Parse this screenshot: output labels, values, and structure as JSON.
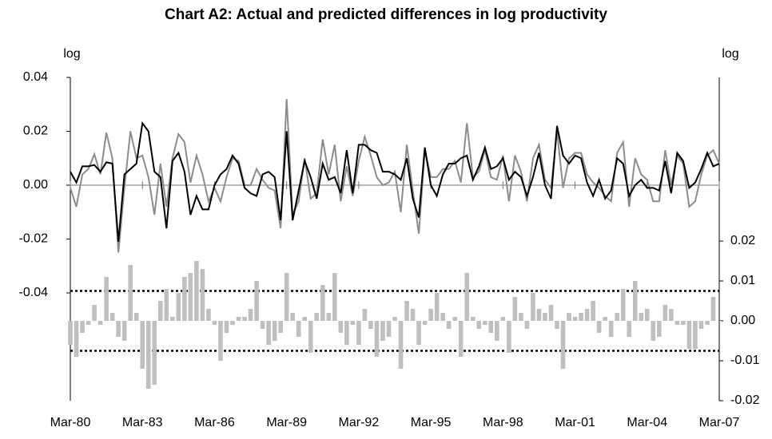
{
  "chart_data": {
    "type": "line",
    "title": "Chart A2: Actual and predicted differences in log productivity",
    "y_label": "log",
    "y2_label": "log",
    "categories": [
      "Mar-80",
      null,
      null,
      null,
      null,
      null,
      null,
      null,
      null,
      null,
      null,
      null,
      "Mar-83",
      null,
      null,
      null,
      null,
      null,
      null,
      null,
      null,
      null,
      null,
      null,
      "Mar-86",
      null,
      null,
      null,
      null,
      null,
      null,
      null,
      null,
      null,
      null,
      null,
      "Mar-89",
      null,
      null,
      null,
      null,
      null,
      null,
      null,
      null,
      null,
      null,
      null,
      "Mar-92",
      null,
      null,
      null,
      null,
      null,
      null,
      null,
      null,
      null,
      null,
      null,
      "Mar-95",
      null,
      null,
      null,
      null,
      null,
      null,
      null,
      null,
      null,
      null,
      null,
      "Mar-98",
      null,
      null,
      null,
      null,
      null,
      null,
      null,
      null,
      null,
      null,
      null,
      "Mar-01",
      null,
      null,
      null,
      null,
      null,
      null,
      null,
      null,
      null,
      null,
      null,
      "Mar-04",
      null,
      null,
      null,
      null,
      null,
      null,
      null,
      null,
      null,
      null,
      null,
      "Mar-07"
    ],
    "ylim": [
      -0.08,
      0.04
    ],
    "yticks": [
      0.04,
      0.02,
      {
        "value": 0,
        "label": "0.00"
      },
      -0.02,
      -0.04
    ],
    "y2lim": [
      -0.02,
      0.061
    ],
    "y2ticks": [
      0.02,
      0.01,
      {
        "value": 0,
        "label": "0.00"
      },
      -0.01,
      -0.02
    ],
    "y2_reference_lines": [
      0.0075,
      -0.0075
    ],
    "series": [
      {
        "color": "#8c8c8c",
        "values": [
          -0.001,
          -0.008,
          0.004,
          0.006,
          0.0115,
          0.004,
          0.0195,
          0.01,
          -0.025,
          -0.001,
          0.02,
          0.01,
          0.011,
          0.003,
          -0.011,
          0.008,
          -0.008,
          0.01,
          0.019,
          0.016,
          0.001,
          0.011,
          0.004,
          -0.006,
          -0.001,
          -0.006,
          0.003,
          0.01,
          0.009,
          0.0,
          0.0,
          0.006,
          0.002,
          -0.001,
          -0.002,
          -0.016,
          0.032,
          -0.011,
          -0.006,
          0.01,
          -0.005,
          -0.003,
          0.017,
          0.004,
          0.015,
          -0.006,
          0.007,
          -0.004,
          0.009,
          0.018,
          0.011,
          0.003,
          0.0,
          0.001,
          0.005,
          -0.01,
          0.015,
          -0.002,
          -0.018,
          0.013,
          0.003,
          0.003,
          0.006,
          0.006,
          0.009,
          0.001,
          0.023,
          0.003,
          0.005,
          0.013,
          0.003,
          0.002,
          0.011,
          -0.006,
          0.011,
          0.005,
          -0.006,
          0.01,
          0.015,
          0.002,
          -0.001,
          0.02,
          -0.001,
          0.01,
          0.012,
          0.012,
          0.004,
          0.001,
          -0.001,
          -0.004,
          -0.006,
          0.012,
          0.016,
          -0.008,
          0.01,
          0.004,
          0.002,
          -0.006,
          -0.006,
          0.013,
          0.0,
          0.011,
          0.008,
          -0.008,
          -0.006,
          0.004,
          0.011,
          0.013,
          0.008
        ]
      },
      {
        "color": "#000000",
        "values": [
          0.005,
          0.001,
          0.007,
          0.007,
          0.0075,
          0.005,
          0.0085,
          0.008,
          -0.021,
          0.004,
          0.006,
          0.008,
          0.023,
          0.02,
          0.005,
          0.003,
          -0.016,
          0.009,
          0.012,
          0.005,
          -0.011,
          -0.004,
          -0.009,
          -0.009,
          0.0,
          0.004,
          0.006,
          0.011,
          0.008,
          -0.001,
          -0.003,
          -0.004,
          0.004,
          0.005,
          0.003,
          -0.013,
          0.02,
          -0.013,
          -0.002,
          0.009,
          0.003,
          -0.005,
          0.008,
          0.002,
          0.003,
          -0.003,
          0.013,
          -0.003,
          0.015,
          0.015,
          0.013,
          0.012,
          0.005,
          0.005,
          0.004,
          0.002,
          0.01,
          -0.005,
          -0.012,
          0.014,
          0.0,
          -0.004,
          0.004,
          0.008,
          0.008,
          0.01,
          0.011,
          0.002,
          0.007,
          0.014,
          0.006,
          0.007,
          0.01,
          0.002,
          0.005,
          0.003,
          -0.004,
          0.003,
          0.012,
          0.0,
          -0.005,
          0.022,
          0.011,
          0.008,
          0.011,
          0.01,
          0.001,
          -0.004,
          0.002,
          -0.005,
          -0.002,
          0.01,
          0.008,
          -0.004,
          0.0,
          0.002,
          -0.001,
          -0.001,
          -0.002,
          0.009,
          -0.003,
          0.012,
          0.009,
          -0.001,
          0.001,
          0.006,
          0.012,
          0.007,
          0.008
        ]
      },
      {
        "type": "bar",
        "axis": "y2",
        "color": "#bfbfbf",
        "values": [
          -0.006,
          -0.009,
          -0.003,
          -0.001,
          0.004,
          -0.001,
          0.011,
          0.002,
          -0.004,
          -0.005,
          0.014,
          0.002,
          -0.012,
          -0.017,
          -0.016,
          0.005,
          0.008,
          0.001,
          0.007,
          0.011,
          0.012,
          0.015,
          0.013,
          0.003,
          -0.001,
          -0.01,
          -0.003,
          -0.001,
          0.001,
          0.001,
          0.003,
          0.01,
          -0.002,
          -0.006,
          -0.005,
          -0.003,
          0.012,
          0.002,
          -0.004,
          0.001,
          -0.008,
          0.002,
          0.009,
          0.002,
          0.012,
          -0.003,
          -0.006,
          -0.001,
          -0.006,
          0.003,
          -0.002,
          -0.009,
          -0.005,
          -0.004,
          0.001,
          -0.012,
          0.005,
          0.003,
          -0.006,
          -0.001,
          0.003,
          0.007,
          0.002,
          -0.002,
          0.001,
          -0.009,
          0.012,
          0.001,
          -0.002,
          -0.001,
          -0.003,
          -0.005,
          0.001,
          -0.008,
          0.006,
          0.002,
          -0.002,
          0.007,
          0.003,
          0.002,
          0.004,
          -0.002,
          -0.012,
          0.002,
          0.001,
          0.002,
          0.003,
          0.005,
          -0.003,
          0.001,
          -0.004,
          0.002,
          0.008,
          -0.004,
          0.01,
          0.002,
          0.003,
          -0.005,
          -0.004,
          0.004,
          0.003,
          -0.001,
          -0.001,
          -0.007,
          -0.007,
          -0.002,
          -0.001,
          0.006,
          0.0
        ]
      }
    ]
  }
}
